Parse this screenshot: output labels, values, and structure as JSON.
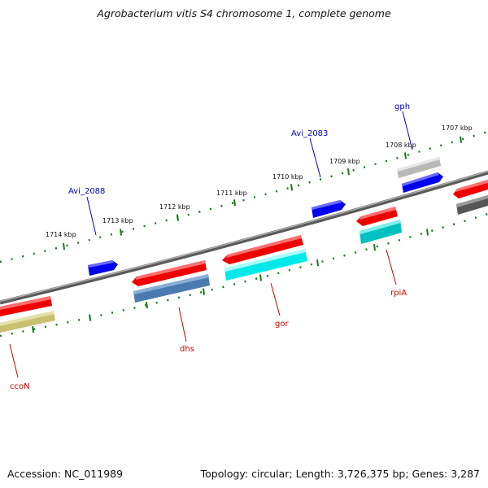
{
  "title": "Agrobacterium vitis S4 chromosome 1, complete genome",
  "footer": {
    "accession": "Accession: NC_011989",
    "summary": "Topology: circular; Length: 3,726,375 bp; Genes: 3,287"
  },
  "colors": {
    "backbone": "#7a7a7a",
    "tick": "#1a7a1a",
    "label_forward": "#0000cc",
    "label_reverse": "#cc0000"
  },
  "ticks": [
    {
      "label": "1714 kbp"
    },
    {
      "label": "1713 kbp"
    },
    {
      "label": "1712 kbp"
    },
    {
      "label": "1711 kbp"
    },
    {
      "label": "1710 kbp"
    },
    {
      "label": "1709 kbp"
    },
    {
      "label": "1708 kbp"
    },
    {
      "label": "1707 kbp"
    }
  ],
  "genes": [
    {
      "id": "Avi_2088",
      "label": "Avi_2088",
      "strand": "forward",
      "color": "#0000ee"
    },
    {
      "id": "Avi_2083",
      "label": "Avi_2083",
      "strand": "forward",
      "color": "#0000ee"
    },
    {
      "id": "gph",
      "label": "gph",
      "strand": "forward",
      "color": "#0000ee"
    },
    {
      "id": "ccoN",
      "label": "ccoN",
      "strand": "reverse",
      "color": "#ee0000"
    },
    {
      "id": "dhs",
      "label": "dhs",
      "strand": "reverse",
      "color": "#ee0000"
    },
    {
      "id": "gor",
      "label": "gor",
      "strand": "reverse",
      "color": "#ee0000"
    },
    {
      "id": "rpiA",
      "label": "rpiA",
      "strand": "reverse",
      "color": "#ee0000"
    }
  ],
  "feature_colors": {
    "ccoN_companion": "#c8c070",
    "dhs_companion": "#4a7ab0",
    "gor_companion": "#00e8e8",
    "rpiA_companion": "#00c0c0",
    "gph_companion": "#b8b8b8",
    "right_companion": "#555555"
  }
}
